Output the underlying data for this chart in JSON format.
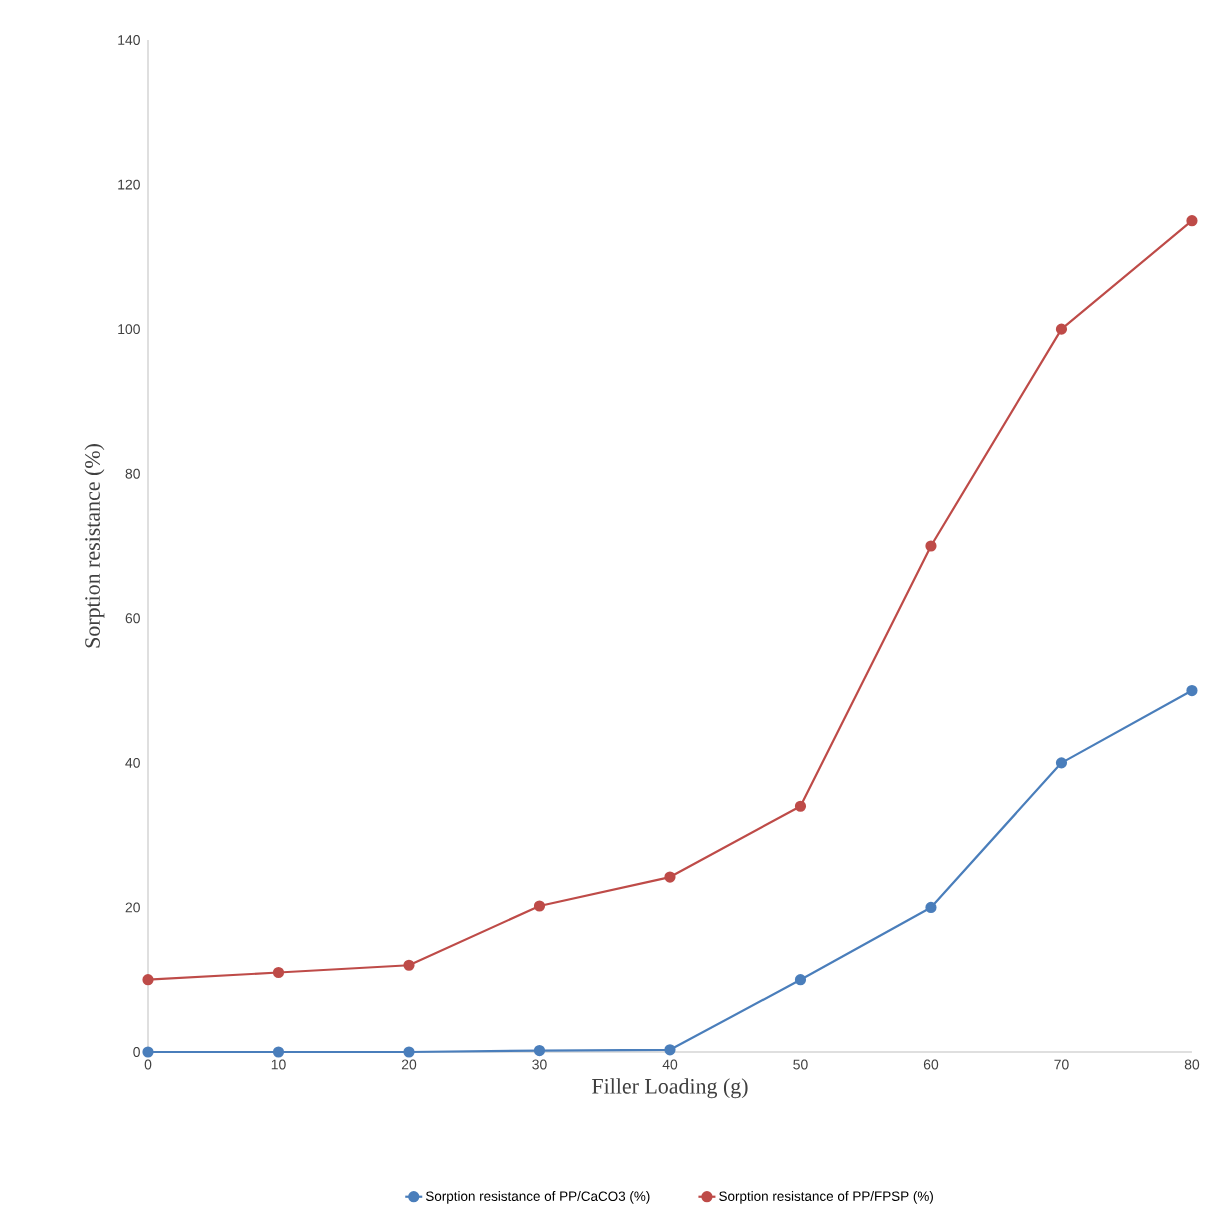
{
  "chart_data": {
    "type": "line",
    "xlabel": "Filler Loading (g)",
    "ylabel": "Sorption resistance (%)",
    "x": [
      0,
      10,
      20,
      30,
      40,
      50,
      60,
      70,
      80
    ],
    "series": [
      {
        "name": "Sorption resistance of PP/CaCO3 (%)",
        "color": "#4a7ebb",
        "values": [
          0,
          0,
          0,
          0.2,
          0.3,
          10,
          20,
          40,
          50
        ]
      },
      {
        "name": "Sorption resistance of PP/FPSP (%)",
        "color": "#be4b48",
        "values": [
          10,
          11,
          12,
          20.2,
          24.2,
          34,
          70,
          100,
          115
        ]
      }
    ],
    "xlim": [
      0,
      80
    ],
    "xticks": [
      0,
      10,
      20,
      30,
      40,
      50,
      60,
      70,
      80
    ],
    "ylim": [
      0,
      140
    ],
    "yticks": [
      0,
      20,
      40,
      60,
      80,
      100,
      120,
      140
    ],
    "grid": false,
    "legend": "bottom",
    "marker": "circle",
    "line_style": "solid"
  }
}
